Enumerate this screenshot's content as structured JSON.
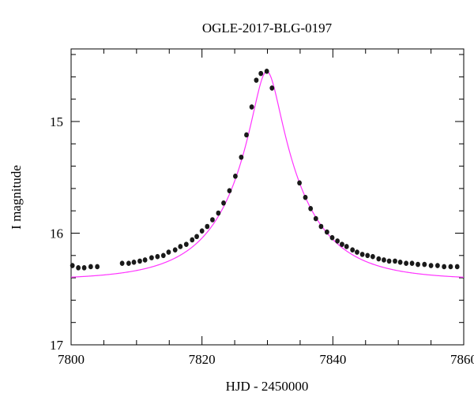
{
  "chart_data": {
    "type": "scatter",
    "title": "OGLE-2017-BLG-0197",
    "xlabel": "HJD - 2450000",
    "ylabel": "I magnitude",
    "xlim": [
      7800,
      7860
    ],
    "ylim": [
      17,
      14.35
    ],
    "y_axis_inverted": true,
    "x_ticks": [
      7800,
      7820,
      7840,
      7860
    ],
    "x_tick_labels": [
      "7800",
      "7820",
      "7840",
      "7860"
    ],
    "y_ticks": [
      15,
      16,
      17
    ],
    "y_tick_labels": [
      "15",
      "16",
      "17"
    ],
    "grid": false,
    "legend": "none",
    "colors": {
      "points": "#1a1a1a",
      "model_curve": "#ff33ff",
      "axes": "#000000"
    },
    "model": {
      "name": "",
      "type": "point-source point-lens",
      "t0": 7829.9,
      "u0": 0.178,
      "tE": 11.2,
      "baseline_mag": 16.42,
      "blend_ratio": 0.02
    },
    "series": [
      {
        "name": "",
        "x": [
          7800.2,
          7801.1,
          7802.0,
          7803.0,
          7804.0,
          7807.8,
          7808.8,
          7809.6,
          7810.5,
          7811.3,
          7812.3,
          7813.2,
          7814.1,
          7814.9,
          7815.9,
          7816.7,
          7817.6,
          7818.5,
          7819.2,
          7820.0,
          7820.8,
          7821.6,
          7822.5,
          7823.3,
          7824.2,
          7825.1,
          7826.0,
          7826.8,
          7827.6,
          7828.3,
          7829.0,
          7829.9,
          7830.7,
          7834.9,
          7835.8,
          7836.6,
          7837.4,
          7838.2,
          7839.1,
          7839.9,
          7840.7,
          7841.4,
          7842.1,
          7843.0,
          7843.7,
          7844.5,
          7845.3,
          7846.1,
          7847.0,
          7847.8,
          7848.6,
          7849.5,
          7850.3,
          7851.2,
          7852.1,
          7853.0,
          7854.0,
          7855.0,
          7856.0,
          7857.0,
          7858.0,
          7859.0
        ],
        "y": [
          16.29,
          16.31,
          16.31,
          16.3,
          16.3,
          16.27,
          16.27,
          16.26,
          16.25,
          16.24,
          16.22,
          16.21,
          16.2,
          16.17,
          16.15,
          16.12,
          16.1,
          16.06,
          16.03,
          15.98,
          15.94,
          15.88,
          15.82,
          15.73,
          15.62,
          15.49,
          15.32,
          15.12,
          14.87,
          14.63,
          14.57,
          14.55,
          14.7,
          15.55,
          15.68,
          15.78,
          15.87,
          15.94,
          15.99,
          16.04,
          16.07,
          16.1,
          16.12,
          16.15,
          16.17,
          16.19,
          16.2,
          16.21,
          16.23,
          16.24,
          16.25,
          16.25,
          16.26,
          16.27,
          16.27,
          16.28,
          16.28,
          16.29,
          16.29,
          16.3,
          16.3,
          16.3
        ]
      }
    ]
  }
}
